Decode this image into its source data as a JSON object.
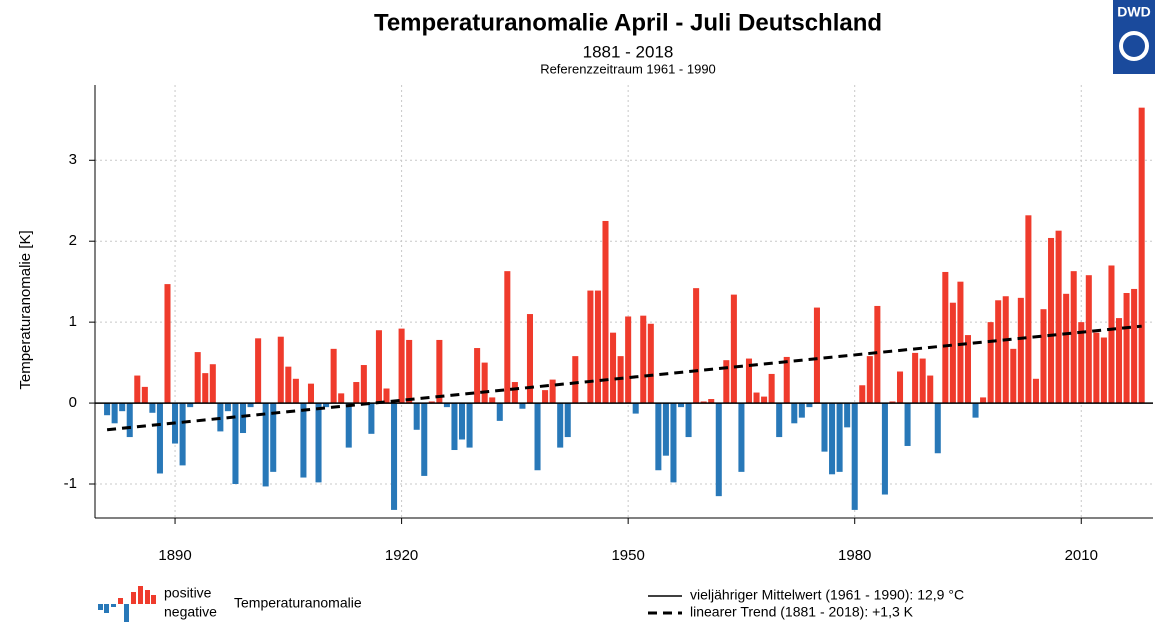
{
  "chart_data": {
    "type": "bar",
    "title": "Temperaturanomalie April - Juli Deutschland",
    "subtitle": "1881 - 2018",
    "note": "Referenzzeitraum 1961 - 1990",
    "y_label": "Temperaturanomalie [K]",
    "logo": "DWD",
    "x": [
      1881,
      1882,
      1883,
      1884,
      1885,
      1886,
      1887,
      1888,
      1889,
      1890,
      1891,
      1892,
      1893,
      1894,
      1895,
      1896,
      1897,
      1898,
      1899,
      1900,
      1901,
      1902,
      1903,
      1904,
      1905,
      1906,
      1907,
      1908,
      1909,
      1910,
      1911,
      1912,
      1913,
      1914,
      1915,
      1916,
      1917,
      1918,
      1919,
      1920,
      1921,
      1922,
      1923,
      1924,
      1925,
      1926,
      1927,
      1928,
      1929,
      1930,
      1931,
      1932,
      1933,
      1934,
      1935,
      1936,
      1937,
      1938,
      1939,
      1940,
      1941,
      1942,
      1943,
      1944,
      1945,
      1946,
      1947,
      1948,
      1949,
      1950,
      1951,
      1952,
      1953,
      1954,
      1955,
      1956,
      1957,
      1958,
      1959,
      1960,
      1961,
      1962,
      1963,
      1964,
      1965,
      1966,
      1967,
      1968,
      1969,
      1970,
      1971,
      1972,
      1973,
      1974,
      1975,
      1976,
      1977,
      1978,
      1979,
      1980,
      1981,
      1982,
      1983,
      1984,
      1985,
      1986,
      1987,
      1988,
      1989,
      1990,
      1991,
      1992,
      1993,
      1994,
      1995,
      1996,
      1997,
      1998,
      1999,
      2000,
      2001,
      2002,
      2003,
      2004,
      2005,
      2006,
      2007,
      2008,
      2009,
      2010,
      2011,
      2012,
      2013,
      2014,
      2015,
      2016,
      2017,
      2018
    ],
    "values": [
      -0.15,
      -0.25,
      -0.1,
      -0.42,
      0.34,
      0.2,
      -0.12,
      -0.87,
      1.47,
      -0.5,
      -0.77,
      -0.05,
      0.63,
      0.37,
      0.48,
      -0.35,
      -0.1,
      -1.0,
      -0.37,
      -0.05,
      0.8,
      -1.03,
      -0.85,
      0.82,
      0.45,
      0.3,
      -0.92,
      0.24,
      -0.98,
      -0.05,
      0.67,
      0.12,
      -0.55,
      0.26,
      0.47,
      -0.38,
      0.9,
      0.18,
      -1.32,
      0.92,
      0.78,
      -0.33,
      -0.9,
      0.02,
      0.78,
      -0.05,
      -0.58,
      -0.45,
      -0.55,
      0.68,
      0.5,
      0.07,
      -0.22,
      1.63,
      0.26,
      -0.07,
      1.1,
      -0.83,
      0.16,
      0.29,
      -0.55,
      -0.42,
      0.58,
      0.01,
      1.39,
      1.39,
      2.25,
      0.87,
      0.58,
      1.07,
      -0.13,
      1.08,
      0.98,
      -0.83,
      -0.65,
      -0.98,
      -0.05,
      -0.42,
      1.42,
      0.02,
      0.05,
      -1.15,
      0.53,
      1.34,
      -0.85,
      0.55,
      0.13,
      0.08,
      0.36,
      -0.42,
      0.57,
      -0.25,
      -0.18,
      -0.05,
      1.18,
      -0.6,
      -0.88,
      -0.85,
      -0.3,
      -1.32,
      0.22,
      0.58,
      1.2,
      -1.13,
      0.02,
      0.39,
      -0.53,
      0.62,
      0.55,
      0.34,
      -0.62,
      1.62,
      1.24,
      1.5,
      0.84,
      -0.18,
      0.07,
      1.0,
      1.27,
      1.32,
      0.67,
      1.3,
      2.32,
      0.3,
      1.16,
      2.04,
      2.13,
      1.35,
      1.63,
      1.0,
      1.58,
      0.87,
      0.81,
      1.7,
      1.05,
      1.36,
      1.41,
      3.65
    ],
    "positive_color": "#ef3b2c",
    "negative_color": "#2878b8",
    "trend": {
      "x": [
        1881,
        2018
      ],
      "values": [
        -0.33,
        0.95
      ]
    },
    "xlim": [
      1879.4,
      2019.5
    ],
    "xticks": [
      1890,
      1920,
      1950,
      1980,
      2010
    ],
    "ylim": [
      -1.42,
      3.93
    ],
    "yticks": [
      -1,
      0,
      1,
      2,
      3
    ],
    "grid": true,
    "legend": {
      "positive": "positive",
      "negative": "negative",
      "anomaly": "Temperaturanomalie",
      "mean": "vieljähriger Mittelwert (1961 - 1990): 12,9 °C",
      "trend": "linearer Trend (1881 - 2018): +1,3 K"
    }
  }
}
